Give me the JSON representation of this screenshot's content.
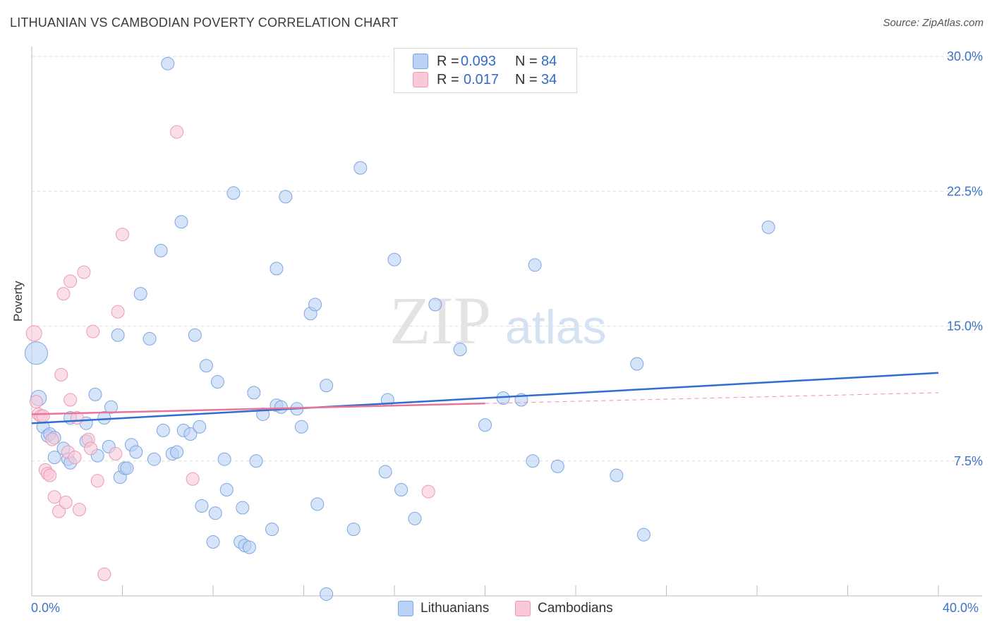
{
  "header": {
    "title": "LITHUANIAN VS CAMBODIAN POVERTY CORRELATION CHART",
    "source": "Source: ZipAtlas.com"
  },
  "legend": {
    "rows": [
      {
        "r_label": "R = ",
        "r_value": "0.093",
        "n_label": "N = ",
        "n_value": "84"
      },
      {
        "r_label": "R = ",
        "r_value": "0.017",
        "n_label": "N = ",
        "n_value": "34"
      }
    ]
  },
  "bottom_legend": [
    "Lithuanians",
    "Cambodians"
  ],
  "watermark": {
    "zip": "ZIP",
    "atlas": "atlas"
  },
  "colors": {
    "blue_fill": "#b9d2f5",
    "blue_stroke": "#7ea6e0",
    "blue_line": "#2f6dcf",
    "pink_fill": "#f9c9d7",
    "pink_stroke": "#ec9ab5",
    "pink_line": "#e8749a",
    "tick_label": "#3a73c8"
  },
  "chart_data": {
    "type": "scatter",
    "title": "LITHUANIAN VS CAMBODIAN POVERTY CORRELATION CHART",
    "xlabel": "",
    "ylabel": "Poverty",
    "xlim": [
      0,
      40
    ],
    "ylim": [
      0,
      30
    ],
    "x_tick_labels": [
      "0.0%",
      "40.0%"
    ],
    "y_ticks": [
      7.5,
      15.0,
      22.5,
      30.0
    ],
    "y_tick_labels": [
      "7.5%",
      "15.0%",
      "22.5%",
      "30.0%"
    ],
    "grid": true,
    "legend_position": "top-center",
    "series": [
      {
        "name": "Lithuanians",
        "R": 0.093,
        "N": 84,
        "trend": {
          "x": [
            0,
            40
          ],
          "y": [
            9.6,
            12.4
          ]
        },
        "points": [
          [
            0.2,
            13.5,
            16
          ],
          [
            0.3,
            11.0,
            11
          ],
          [
            0.5,
            9.4,
            9
          ],
          [
            0.7,
            8.9,
            9
          ],
          [
            0.8,
            9.0,
            9
          ],
          [
            1.0,
            8.8,
            9
          ],
          [
            1.0,
            7.7,
            9
          ],
          [
            1.4,
            8.2,
            9
          ],
          [
            1.6,
            7.6,
            9
          ],
          [
            1.7,
            7.4,
            9
          ],
          [
            1.7,
            9.9,
            9
          ],
          [
            2.4,
            8.6,
            9
          ],
          [
            2.4,
            9.6,
            9
          ],
          [
            2.8,
            11.2,
            9
          ],
          [
            2.9,
            7.8,
            9
          ],
          [
            3.2,
            9.9,
            9
          ],
          [
            3.4,
            8.3,
            9
          ],
          [
            3.5,
            10.5,
            9
          ],
          [
            3.8,
            14.5,
            9
          ],
          [
            3.9,
            6.6,
            9
          ],
          [
            4.1,
            7.1,
            9
          ],
          [
            4.2,
            7.1,
            9
          ],
          [
            4.4,
            8.4,
            9
          ],
          [
            4.6,
            8.0,
            9
          ],
          [
            4.8,
            16.8,
            9
          ],
          [
            5.2,
            14.3,
            9
          ],
          [
            5.4,
            7.6,
            9
          ],
          [
            5.7,
            19.2,
            9
          ],
          [
            5.8,
            9.2,
            9
          ],
          [
            6.0,
            29.6,
            9
          ],
          [
            6.2,
            7.9,
            9
          ],
          [
            6.4,
            8.0,
            9
          ],
          [
            6.6,
            20.8,
            9
          ],
          [
            6.7,
            9.2,
            9
          ],
          [
            7.0,
            9.0,
            9
          ],
          [
            7.2,
            14.5,
            9
          ],
          [
            7.4,
            9.4,
            9
          ],
          [
            7.5,
            5.0,
            9
          ],
          [
            7.7,
            12.8,
            9
          ],
          [
            8.0,
            3.0,
            9
          ],
          [
            8.1,
            4.6,
            9
          ],
          [
            8.2,
            11.9,
            9
          ],
          [
            8.5,
            7.6,
            9
          ],
          [
            8.6,
            5.9,
            9
          ],
          [
            8.9,
            22.4,
            9
          ],
          [
            9.2,
            3.0,
            9
          ],
          [
            9.3,
            4.9,
            9
          ],
          [
            9.4,
            2.8,
            9
          ],
          [
            9.6,
            2.7,
            9
          ],
          [
            9.8,
            11.3,
            9
          ],
          [
            9.9,
            7.5,
            9
          ],
          [
            10.2,
            10.1,
            9
          ],
          [
            10.6,
            3.7,
            9
          ],
          [
            10.8,
            18.2,
            9
          ],
          [
            10.8,
            10.6,
            9
          ],
          [
            11.0,
            10.5,
            9
          ],
          [
            11.2,
            22.2,
            9
          ],
          [
            11.7,
            10.4,
            9
          ],
          [
            11.9,
            9.4,
            9
          ],
          [
            12.3,
            15.7,
            9
          ],
          [
            12.5,
            16.2,
            9
          ],
          [
            12.6,
            5.1,
            9
          ],
          [
            13.0,
            11.7,
            9
          ],
          [
            13.0,
            0.1,
            9
          ],
          [
            14.2,
            3.7,
            9
          ],
          [
            14.5,
            23.8,
            9
          ],
          [
            15.7,
            10.9,
            9
          ],
          [
            15.6,
            6.9,
            9
          ],
          [
            16.0,
            18.7,
            9
          ],
          [
            16.3,
            5.9,
            9
          ],
          [
            16.9,
            4.3,
            9
          ],
          [
            17.8,
            16.2,
            9
          ],
          [
            18.9,
            13.7,
            9
          ],
          [
            20.0,
            9.5,
            9
          ],
          [
            20.8,
            11.0,
            9
          ],
          [
            21.6,
            10.9,
            9
          ],
          [
            22.1,
            7.5,
            9
          ],
          [
            22.2,
            18.4,
            9
          ],
          [
            23.2,
            7.2,
            9
          ],
          [
            25.8,
            6.7,
            9
          ],
          [
            26.7,
            12.9,
            9
          ],
          [
            27.0,
            3.4,
            9
          ],
          [
            32.5,
            20.5,
            9
          ]
        ]
      },
      {
        "name": "Cambodians",
        "R": 0.017,
        "N": 34,
        "trend": {
          "x": [
            0,
            20
          ],
          "y": [
            10.1,
            10.7
          ]
        },
        "trend_dashed": {
          "x": [
            20,
            40
          ],
          "y": [
            10.7,
            11.3
          ]
        },
        "points": [
          [
            0.1,
            14.6,
            11
          ],
          [
            0.2,
            10.8,
            9
          ],
          [
            0.3,
            10.1,
            9
          ],
          [
            0.4,
            10.0,
            9
          ],
          [
            0.5,
            10.0,
            9
          ],
          [
            0.6,
            7.0,
            9
          ],
          [
            0.7,
            6.8,
            9
          ],
          [
            0.8,
            6.7,
            9
          ],
          [
            0.9,
            8.7,
            9
          ],
          [
            1.0,
            5.5,
            9
          ],
          [
            1.2,
            4.7,
            9
          ],
          [
            1.3,
            12.3,
            9
          ],
          [
            1.4,
            16.8,
            9
          ],
          [
            1.5,
            5.2,
            9
          ],
          [
            1.6,
            8.0,
            9
          ],
          [
            1.7,
            17.5,
            9
          ],
          [
            1.7,
            10.9,
            9
          ],
          [
            1.9,
            7.7,
            9
          ],
          [
            2.0,
            9.9,
            9
          ],
          [
            2.1,
            4.8,
            9
          ],
          [
            2.3,
            18.0,
            9
          ],
          [
            2.5,
            8.7,
            9
          ],
          [
            2.6,
            8.2,
            9
          ],
          [
            2.7,
            14.7,
            9
          ],
          [
            2.9,
            6.4,
            9
          ],
          [
            3.2,
            1.2,
            9
          ],
          [
            3.7,
            7.9,
            9
          ],
          [
            3.8,
            15.8,
            9
          ],
          [
            4.0,
            20.1,
            9
          ],
          [
            6.4,
            25.8,
            9
          ],
          [
            7.1,
            6.5,
            9
          ],
          [
            17.5,
            5.8,
            9
          ]
        ]
      }
    ]
  }
}
